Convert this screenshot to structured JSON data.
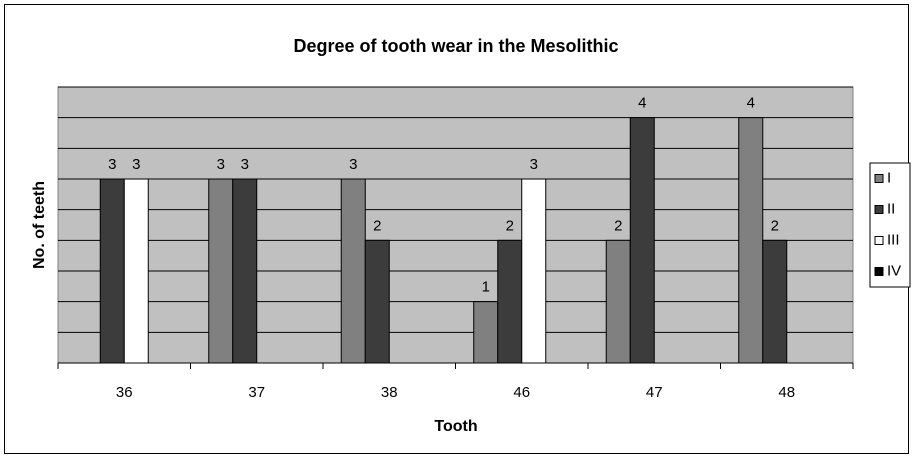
{
  "chart_data": {
    "type": "bar",
    "title": "Degree of tooth wear in the Mesolithic",
    "x_label": "Tooth",
    "y_label": "No. of teeth",
    "categories": [
      "36",
      "37",
      "38",
      "46",
      "47",
      "48"
    ],
    "series": [
      {
        "name": "I",
        "color": "#808080",
        "values": [
          null,
          3,
          3,
          1,
          2,
          4
        ]
      },
      {
        "name": "II",
        "color": "#3c3c3c",
        "values": [
          3,
          3,
          2,
          2,
          4,
          2
        ]
      },
      {
        "name": "III",
        "color": "#ffffff",
        "values": [
          3,
          null,
          null,
          3,
          null,
          null
        ]
      },
      {
        "name": "IV",
        "color": "#000000",
        "values": [
          null,
          null,
          null,
          null,
          null,
          null
        ]
      }
    ],
    "ylim": [
      0,
      4.5
    ],
    "yticks": [
      0,
      0.5,
      1,
      1.5,
      2,
      2.5,
      3,
      3.5,
      4,
      4.5
    ],
    "grid": true,
    "legend": "right"
  }
}
